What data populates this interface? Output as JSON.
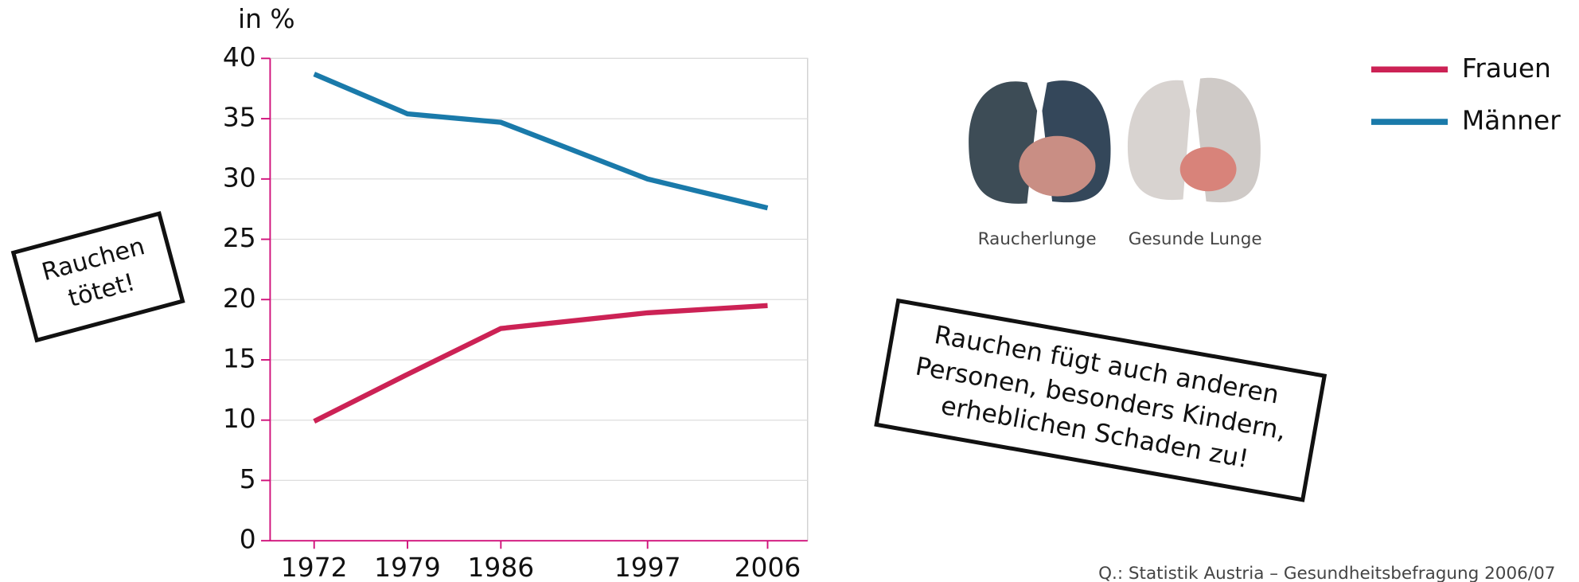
{
  "chart_data": {
    "type": "line",
    "y_label": "in %",
    "x": [
      1972,
      1979,
      1986,
      1997,
      2006
    ],
    "series": [
      {
        "name": "Frauen",
        "color": "#cc2255",
        "values": [
          9.9,
          13.8,
          17.6,
          18.9,
          19.5
        ]
      },
      {
        "name": "Männer",
        "color": "#1a7aaa",
        "values": [
          38.7,
          35.4,
          34.7,
          30.0,
          27.6
        ]
      }
    ],
    "xlim": [
      1968.7,
      2009
    ],
    "xticks": [
      1972,
      1979,
      1986,
      1997,
      2006
    ],
    "ylim": [
      0,
      40
    ],
    "yticks": [
      0,
      5,
      10,
      15,
      20,
      25,
      30,
      35,
      40
    ],
    "grid": true,
    "legend": "top-right",
    "annotations": [
      [
        "Rauchen",
        "tötet!"
      ],
      [
        "Rauchen fügt auch anderen",
        "Personen, besonders Kindern,",
        "erheblichen Schaden zu!"
      ]
    ],
    "image_captions": [
      "Raucherlunge",
      "Gesunde Lunge"
    ],
    "source": "Q.: Statistik Austria – Gesundheitsbefragung 2006/07"
  }
}
